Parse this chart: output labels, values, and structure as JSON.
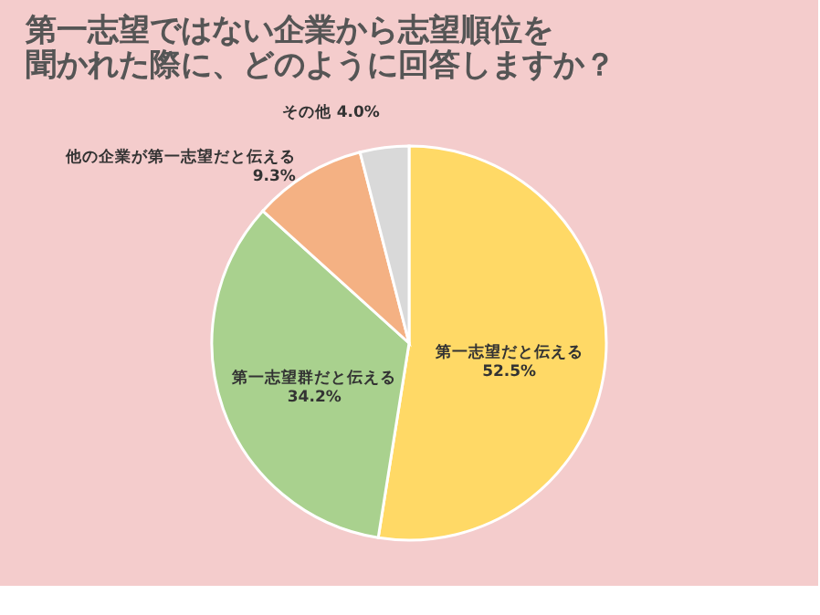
{
  "chart_data": {
    "type": "pie",
    "title": "第一志望ではない企業から志望順位を聞かれた際に、どのように回答しますか？",
    "categories": [
      "第一志望だと伝える",
      "第一志望群だと伝える",
      "他の企業が第一志望だと伝える",
      "その他"
    ],
    "values": [
      52.5,
      34.2,
      9.3,
      4.0
    ],
    "value_labels": [
      "52.5%",
      "34.2%",
      "9.3%",
      "4.0%"
    ],
    "colors": [
      "#ffd966",
      "#a9d18e",
      "#f4b183",
      "#d9d9d9"
    ],
    "legend": false
  }
}
